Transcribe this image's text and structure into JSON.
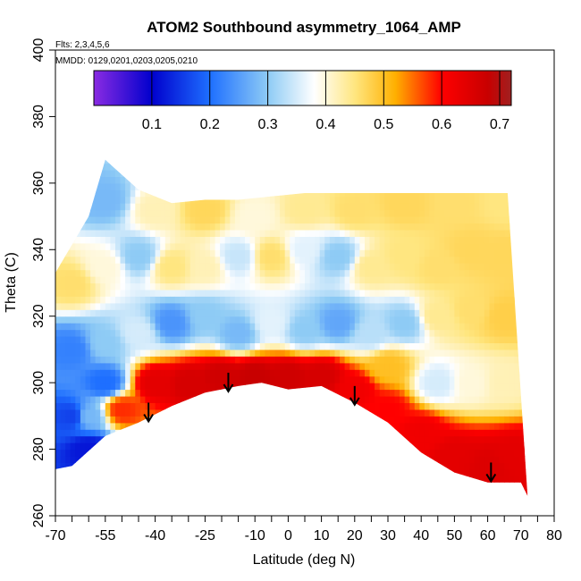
{
  "chart_data": {
    "type": "heatmap",
    "title": "ATOM2 Southbound asymmetry_1064_AMP",
    "flights_note": "Flts: 2,3,4,5,6",
    "dates_note": "MMDD: 0129,0201,0203,0205,0210",
    "xlabel": "Latitude (deg N)",
    "ylabel": "Theta (C)",
    "xlim": [
      -70,
      80
    ],
    "ylim": [
      260,
      400
    ],
    "xticks": [
      -70,
      -65,
      -60,
      -55,
      -50,
      -45,
      -40,
      -35,
      -30,
      -25,
      -20,
      -15,
      -10,
      -5,
      0,
      5,
      10,
      15,
      20,
      25,
      30,
      35,
      40,
      45,
      50,
      55,
      60,
      65,
      70,
      75,
      80
    ],
    "xtick_labels": [
      "-70",
      "",
      "",
      "-55",
      "",
      "",
      "-40",
      "",
      "",
      "-25",
      "",
      "",
      "-10",
      "",
      "0",
      "",
      "10",
      "",
      "20",
      "",
      "30",
      "",
      "40",
      "",
      "50",
      "",
      "60",
      "",
      "70",
      "",
      "80"
    ],
    "yticks": [
      260,
      280,
      300,
      320,
      340,
      360,
      380,
      400
    ],
    "colorbar": {
      "range": [
        0.0,
        0.72
      ],
      "ticks": [
        0.1,
        0.2,
        0.3,
        0.4,
        0.5,
        0.6,
        0.7
      ],
      "tick_labels": [
        "0.1",
        "0.2",
        "0.3",
        "0.4",
        "0.5",
        "0.6",
        "0.7"
      ],
      "stops": [
        {
          "v": 0.0,
          "color": "#8a2be2"
        },
        {
          "v": 0.1,
          "color": "#0000cd"
        },
        {
          "v": 0.2,
          "color": "#1e6fff"
        },
        {
          "v": 0.3,
          "color": "#8ecbf5"
        },
        {
          "v": 0.38,
          "color": "#ffffff"
        },
        {
          "v": 0.45,
          "color": "#ffe680"
        },
        {
          "v": 0.52,
          "color": "#ffb000"
        },
        {
          "v": 0.6,
          "color": "#ff0000"
        },
        {
          "v": 0.68,
          "color": "#c80000"
        },
        {
          "v": 0.72,
          "color": "#a02020"
        }
      ]
    },
    "boundary": {
      "upper": [
        [
          -70,
          333
        ],
        [
          -60,
          350
        ],
        [
          -55,
          367
        ],
        [
          -45,
          358
        ],
        [
          -35,
          354
        ],
        [
          -25,
          355
        ],
        [
          -15,
          355
        ],
        [
          -5,
          356
        ],
        [
          5,
          357
        ],
        [
          15,
          357
        ],
        [
          25,
          357
        ],
        [
          35,
          357
        ],
        [
          45,
          357
        ],
        [
          55,
          357
        ],
        [
          66,
          357
        ]
      ],
      "lower": [
        [
          -70,
          274
        ],
        [
          -65,
          275
        ],
        [
          -55,
          284
        ],
        [
          -45,
          288
        ],
        [
          -35,
          293
        ],
        [
          -25,
          297
        ],
        [
          -15,
          299
        ],
        [
          -8,
          300
        ],
        [
          0,
          298
        ],
        [
          10,
          299
        ],
        [
          20,
          294
        ],
        [
          30,
          288
        ],
        [
          40,
          279
        ],
        [
          50,
          273
        ],
        [
          60,
          270
        ],
        [
          70,
          270
        ],
        [
          72,
          266
        ]
      ]
    },
    "grid": [
      {
        "lat": -65,
        "theta": 290,
        "value": 0.16
      },
      {
        "lat": -60,
        "theta": 290,
        "value": 0.28
      },
      {
        "lat": -50,
        "theta": 292,
        "value": 0.58
      },
      {
        "lat": -40,
        "theta": 300,
        "value": 0.64
      },
      {
        "lat": -30,
        "theta": 300,
        "value": 0.66
      },
      {
        "lat": -20,
        "theta": 302,
        "value": 0.67
      },
      {
        "lat": -10,
        "theta": 302,
        "value": 0.68
      },
      {
        "lat": 0,
        "theta": 302,
        "value": 0.67
      },
      {
        "lat": 10,
        "theta": 302,
        "value": 0.66
      },
      {
        "lat": 20,
        "theta": 298,
        "value": 0.62
      },
      {
        "lat": 30,
        "theta": 292,
        "value": 0.6
      },
      {
        "lat": 40,
        "theta": 285,
        "value": 0.62
      },
      {
        "lat": 50,
        "theta": 278,
        "value": 0.64
      },
      {
        "lat": 60,
        "theta": 275,
        "value": 0.65
      },
      {
        "lat": 68,
        "theta": 278,
        "value": 0.64
      },
      {
        "lat": -65,
        "theta": 310,
        "value": 0.22
      },
      {
        "lat": -55,
        "theta": 312,
        "value": 0.3
      },
      {
        "lat": -45,
        "theta": 315,
        "value": 0.35
      },
      {
        "lat": -35,
        "theta": 318,
        "value": 0.24
      },
      {
        "lat": -25,
        "theta": 320,
        "value": 0.3
      },
      {
        "lat": -15,
        "theta": 315,
        "value": 0.28
      },
      {
        "lat": -5,
        "theta": 318,
        "value": 0.36
      },
      {
        "lat": 5,
        "theta": 316,
        "value": 0.3
      },
      {
        "lat": 15,
        "theta": 318,
        "value": 0.26
      },
      {
        "lat": 25,
        "theta": 315,
        "value": 0.33
      },
      {
        "lat": 35,
        "theta": 318,
        "value": 0.3
      },
      {
        "lat": 45,
        "theta": 320,
        "value": 0.44
      },
      {
        "lat": 55,
        "theta": 322,
        "value": 0.46
      },
      {
        "lat": 65,
        "theta": 320,
        "value": 0.48
      },
      {
        "lat": -65,
        "theta": 330,
        "value": 0.46
      },
      {
        "lat": -55,
        "theta": 335,
        "value": 0.4
      },
      {
        "lat": -45,
        "theta": 338,
        "value": 0.3
      },
      {
        "lat": -35,
        "theta": 335,
        "value": 0.45
      },
      {
        "lat": -25,
        "theta": 335,
        "value": 0.42
      },
      {
        "lat": -15,
        "theta": 338,
        "value": 0.34
      },
      {
        "lat": -5,
        "theta": 338,
        "value": 0.46
      },
      {
        "lat": 5,
        "theta": 340,
        "value": 0.36
      },
      {
        "lat": 15,
        "theta": 338,
        "value": 0.3
      },
      {
        "lat": 25,
        "theta": 335,
        "value": 0.44
      },
      {
        "lat": 35,
        "theta": 338,
        "value": 0.45
      },
      {
        "lat": 45,
        "theta": 335,
        "value": 0.46
      },
      {
        "lat": 55,
        "theta": 340,
        "value": 0.47
      },
      {
        "lat": 65,
        "theta": 338,
        "value": 0.47
      },
      {
        "lat": -55,
        "theta": 355,
        "value": 0.28
      },
      {
        "lat": -40,
        "theta": 352,
        "value": 0.42
      },
      {
        "lat": -25,
        "theta": 352,
        "value": 0.47
      },
      {
        "lat": -10,
        "theta": 350,
        "value": 0.4
      },
      {
        "lat": 5,
        "theta": 352,
        "value": 0.44
      },
      {
        "lat": 20,
        "theta": 352,
        "value": 0.46
      },
      {
        "lat": 35,
        "theta": 354,
        "value": 0.47
      },
      {
        "lat": 50,
        "theta": 354,
        "value": 0.46
      },
      {
        "lat": 65,
        "theta": 354,
        "value": 0.45
      },
      {
        "lat": -60,
        "theta": 280,
        "value": 0.12
      },
      {
        "lat": -55,
        "theta": 300,
        "value": 0.2
      },
      {
        "lat": 45,
        "theta": 300,
        "value": 0.35
      },
      {
        "lat": 55,
        "theta": 300,
        "value": 0.4
      },
      {
        "lat": 65,
        "theta": 300,
        "value": 0.42
      },
      {
        "lat": 30,
        "theta": 305,
        "value": 0.5
      }
    ],
    "arrows": [
      {
        "lat": -42,
        "theta": 294
      },
      {
        "lat": -18,
        "theta": 303
      },
      {
        "lat": 20,
        "theta": 299
      },
      {
        "lat": 61,
        "theta": 276
      }
    ]
  }
}
